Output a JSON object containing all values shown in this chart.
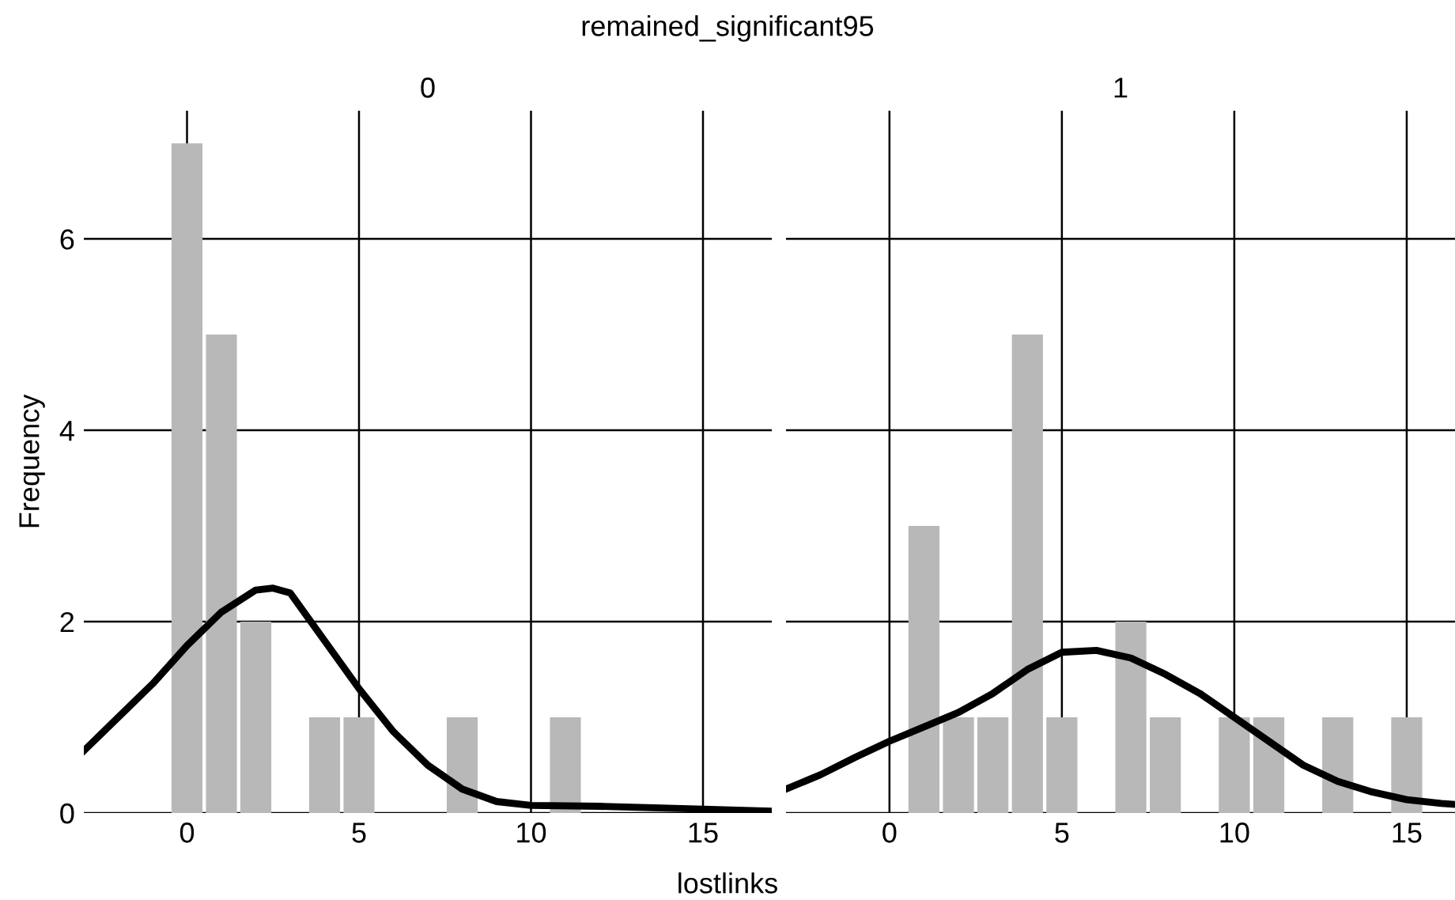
{
  "chart_data": [
    {
      "type": "histogram",
      "title": "0",
      "annotations": [
        "remained_significant95"
      ],
      "xlabel": "lostlinks",
      "ylabel": "Frequency",
      "bins": [
        -0.5,
        0.5,
        1.5,
        2.5,
        3.5,
        4.5,
        5.5,
        6.5,
        7.5,
        8.5,
        9.5,
        10.5,
        11.5
      ],
      "values": [
        7,
        5,
        2,
        0,
        1,
        1,
        0,
        0,
        1,
        0,
        0,
        1
      ],
      "color": "#b8b8b8",
      "series": [
        {
          "type": "line",
          "color": "#000000",
          "x": [
            -3,
            -2,
            -1,
            0,
            1,
            2,
            2.5,
            3,
            4,
            5,
            6,
            7,
            8,
            9,
            10,
            12,
            15,
            17
          ],
          "values": [
            0.65,
            1.0,
            1.35,
            1.75,
            2.1,
            2.33,
            2.35,
            2.3,
            1.8,
            1.3,
            0.85,
            0.5,
            0.25,
            0.12,
            0.08,
            0.07,
            0.04,
            0.02
          ]
        }
      ],
      "xlim": [
        -3,
        17
      ],
      "ylim": [
        0,
        7.34
      ],
      "xticks": [
        0,
        5,
        10,
        15
      ],
      "yticks": [
        0,
        2,
        4,
        6
      ],
      "grid": true
    },
    {
      "type": "histogram",
      "title": "1",
      "bins": [
        0.5,
        1.5,
        2.5,
        3.5,
        4.5,
        5.5,
        6.5,
        7.5,
        8.5,
        9.5,
        10.5,
        11.5,
        12.5,
        13.5,
        14.5,
        15.5
      ],
      "values": [
        3,
        1,
        1,
        5,
        1,
        0,
        2,
        1,
        0,
        1,
        1,
        0,
        1,
        0,
        1
      ],
      "color": "#b8b8b8",
      "series": [
        {
          "type": "line",
          "color": "#000000",
          "x": [
            -3,
            -2,
            -1,
            0,
            1,
            2,
            3,
            4,
            5,
            6,
            7,
            8,
            9,
            10,
            11,
            12,
            13,
            14,
            15,
            16,
            16.4
          ],
          "values": [
            0.25,
            0.4,
            0.58,
            0.75,
            0.9,
            1.05,
            1.25,
            1.5,
            1.68,
            1.7,
            1.62,
            1.45,
            1.25,
            1.0,
            0.75,
            0.5,
            0.33,
            0.22,
            0.14,
            0.1,
            0.09
          ]
        }
      ],
      "xlim": [
        -3,
        16.4
      ],
      "ylim": [
        0,
        7.34
      ],
      "xticks": [
        0,
        5,
        10,
        15
      ],
      "yticks": [
        0,
        2,
        4,
        6
      ],
      "grid": true,
      "tick_labels": "x"
    }
  ]
}
